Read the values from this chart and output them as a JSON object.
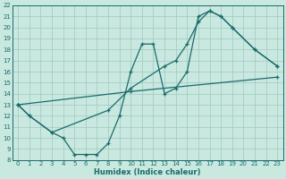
{
  "title": "",
  "xlabel": "Humidex (Indice chaleur)",
  "bg_color": "#c8e8e0",
  "grid_color": "#a0c8c0",
  "line_color": "#1a6b6b",
  "xlim": [
    -0.5,
    23.5
  ],
  "ylim": [
    8,
    22
  ],
  "xticks": [
    0,
    1,
    2,
    3,
    4,
    5,
    6,
    7,
    8,
    9,
    10,
    11,
    12,
    13,
    14,
    15,
    16,
    17,
    18,
    19,
    20,
    21,
    22,
    23
  ],
  "yticks": [
    8,
    9,
    10,
    11,
    12,
    13,
    14,
    15,
    16,
    17,
    18,
    19,
    20,
    21,
    22
  ],
  "line1_x": [
    0,
    1,
    3,
    4,
    5,
    6,
    7,
    8,
    9,
    10,
    11,
    12,
    13,
    14,
    15,
    16,
    17,
    18,
    19,
    21,
    23
  ],
  "line1_y": [
    13,
    12,
    10.5,
    10,
    8.5,
    8.5,
    8.5,
    9.5,
    12.0,
    16.0,
    18.5,
    18.5,
    14.0,
    14.5,
    16.0,
    21.0,
    21.5,
    21.0,
    20.0,
    18.0,
    16.5
  ],
  "line2_x": [
    0,
    10,
    23
  ],
  "line2_y": [
    13,
    14.2,
    15.5
  ],
  "line3_x": [
    0,
    1,
    3,
    8,
    10,
    13,
    14,
    15,
    16,
    17,
    18,
    19,
    21,
    23
  ],
  "line3_y": [
    13,
    12,
    10.5,
    12.5,
    14.5,
    16.5,
    17.0,
    18.5,
    20.5,
    21.5,
    21.0,
    20.0,
    18.0,
    16.5
  ]
}
